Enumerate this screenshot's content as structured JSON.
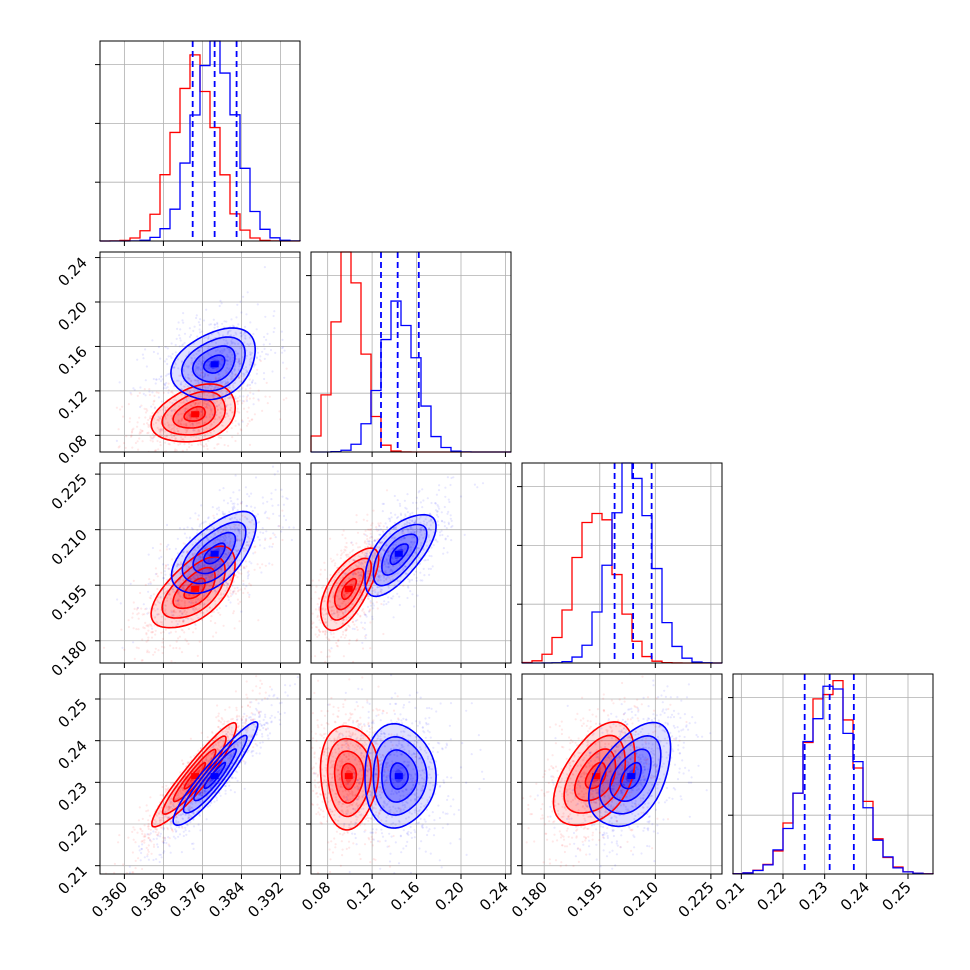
{
  "chart_data": {
    "type": "corner",
    "colors": {
      "series_a": "#ff0000",
      "series_b": "#0000ff",
      "grid": "#b0b0b0",
      "frame": "#000000"
    },
    "parameters": [
      {
        "range": [
          0.355,
          0.396
        ],
        "ticks": [
          0.36,
          0.368,
          0.376,
          0.384,
          0.392
        ],
        "tick_labels": [
          "0.360",
          "0.368",
          "0.376",
          "0.384",
          "0.392"
        ]
      },
      {
        "range": [
          0.065,
          0.245
        ],
        "ticks": [
          0.08,
          0.12,
          0.16,
          0.2,
          0.24
        ],
        "tick_labels": [
          "0.08",
          "0.12",
          "0.16",
          "0.20",
          "0.24"
        ]
      },
      {
        "range": [
          0.174,
          0.228
        ],
        "ticks": [
          0.18,
          0.195,
          0.21,
          0.225
        ],
        "tick_labels": [
          "0.180",
          "0.195",
          "0.210",
          "0.225"
        ]
      },
      {
        "range": [
          0.208,
          0.256
        ],
        "ticks": [
          0.21,
          0.22,
          0.23,
          0.24,
          0.25
        ],
        "tick_labels": [
          "0.21",
          "0.22",
          "0.23",
          "0.24",
          "0.25"
        ]
      }
    ],
    "series": [
      {
        "name": "",
        "color": "#ff0000",
        "mean": [
          0.3745,
          0.099,
          0.194,
          0.2315
        ],
        "std": [
          0.0043,
          0.013,
          0.0055,
          0.0062
        ],
        "hist_peak": [
          0.88,
          1.0,
          0.78,
          0.96
        ]
      },
      {
        "name": "",
        "color": "#0000ff",
        "mean": [
          0.3785,
          0.144,
          0.2035,
          0.2315
        ],
        "std": [
          0.0043,
          0.016,
          0.0055,
          0.0062
        ],
        "hist_peak": [
          1.0,
          0.73,
          1.0,
          0.93
        ]
      }
    ],
    "quantile_lines": [
      [
        0.374,
        0.3785,
        0.383
      ],
      [
        0.128,
        0.143,
        0.162
      ],
      [
        0.199,
        0.204,
        0.209
      ],
      [
        0.2252,
        0.2312,
        0.237
      ]
    ],
    "grid": true,
    "legend": "none"
  }
}
